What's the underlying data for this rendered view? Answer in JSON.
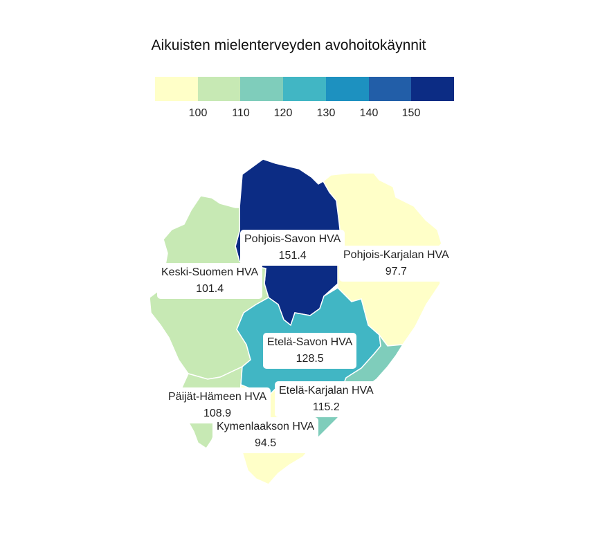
{
  "title": "Aikuisten mielenterveyden avohoitokäynnit",
  "legend": {
    "colors": [
      "#ffffc8",
      "#c7e9b4",
      "#7fcdbb",
      "#41b6c4",
      "#1d91c0",
      "#225ea8",
      "#0c2c84"
    ],
    "ticks": [
      "100",
      "110",
      "120",
      "130",
      "140",
      "150"
    ]
  },
  "regions": [
    {
      "name": "Pohjois-Savon HVA",
      "value": "151.4",
      "color": "#0c2c84"
    },
    {
      "name": "Pohjois-Karjalan HVA",
      "value": "97.7",
      "color": "#ffffc8"
    },
    {
      "name": "Keski-Suomen HVA",
      "value": "101.4",
      "color": "#c7e9b4"
    },
    {
      "name": "Etelä-Savon HVA",
      "value": "128.5",
      "color": "#41b6c4"
    },
    {
      "name": "Päijät-Hämeen HVA",
      "value": "108.9",
      "color": "#c7e9b4"
    },
    {
      "name": "Etelä-Karjalan HVA",
      "value": "115.2",
      "color": "#7fcdbb"
    },
    {
      "name": "Kymenlaakson HVA",
      "value": "94.5",
      "color": "#ffffc8"
    }
  ]
}
